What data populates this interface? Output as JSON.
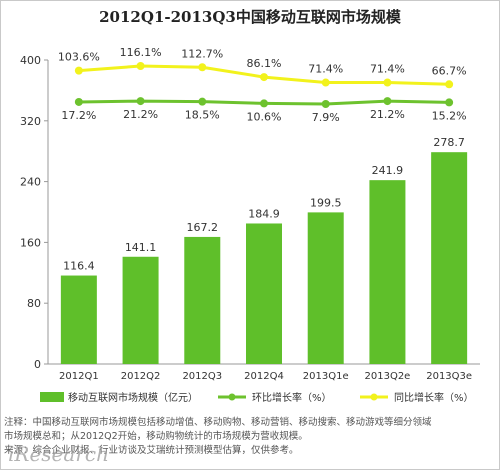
{
  "chart_data": {
    "type": "bar",
    "title": "2012Q1-2013Q3中国移动互联网市场规模",
    "categories": [
      "2012Q1",
      "2012Q2",
      "2012Q3",
      "2012Q4",
      "2013Q1e",
      "2013Q2e",
      "2013Q3e"
    ],
    "ylim": [
      0,
      400
    ],
    "yticks": [
      0,
      80,
      160,
      240,
      320,
      400
    ],
    "grid": false,
    "legend_position": "bottom",
    "series": [
      {
        "name": "移动互联网市场规模（亿元）",
        "type": "bar",
        "values": [
          116.4,
          141.1,
          167.2,
          184.9,
          199.5,
          241.9,
          278.7
        ],
        "labels": [
          "116.4",
          "141.1",
          "167.2",
          "184.9",
          "199.5",
          "241.9",
          "278.7"
        ],
        "color": "#5fbf2a"
      },
      {
        "name": "环比增长率（%）",
        "type": "line",
        "values": [
          17.2,
          21.2,
          18.5,
          10.6,
          7.9,
          21.2,
          15.2
        ],
        "labels": [
          "17.2%",
          "21.2%",
          "18.5%",
          "10.6%",
          "7.9%",
          "21.2%",
          "15.2%"
        ],
        "color": "#6dc22e"
      },
      {
        "name": "同比增长率（%）",
        "type": "line",
        "values": [
          103.6,
          116.1,
          112.7,
          86.1,
          71.4,
          71.4,
          66.7
        ],
        "labels": [
          "103.6%",
          "116.1%",
          "112.7%",
          "86.1%",
          "71.4%",
          "71.4%",
          "66.7%"
        ],
        "color": "#f2f21c"
      }
    ]
  },
  "notes": [
    "注释：中国移动互联网市场规模包括移动增值、移动购物、移动营销、移动搜索、移动游戏等细分领域",
    "市场规模总和；从2012Q2开始，移动购物统计的市场规模为营收规模。",
    "来源：综合企业财报、行业访谈及艾瑞统计预测模型估算，仅供参考。"
  ],
  "logo_text": "iResearch"
}
